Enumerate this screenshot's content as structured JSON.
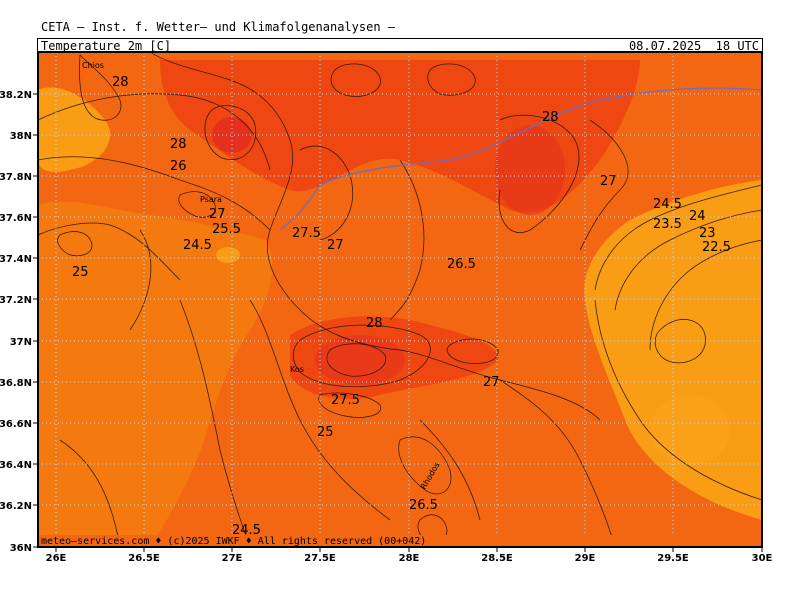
{
  "header": {
    "title": "CETA — Inst. f. Wetter— und Klimafolgenanalysen —",
    "variable": "Temperature_2m_[C]",
    "valid_time": "08.07.2025  18 UTC"
  },
  "footer": {
    "credit": "meteo—services.com ♦ (c)2025 IWKF ♦ All rights reserved (00+042)"
  },
  "axes": {
    "lon_labels": [
      "26E",
      "26.5E",
      "27E",
      "27.5E",
      "28E",
      "28.5E",
      "29E",
      "29.5E",
      "30E"
    ],
    "lat_labels": [
      "36N",
      "36.2N",
      "36.4N",
      "36.6N",
      "36.8N",
      "37N",
      "37.2N",
      "37.4N",
      "37.6N",
      "37.8N",
      "38N",
      "38.2N"
    ]
  },
  "colors": {
    "warm": "#f25d0d",
    "mid": "#f47a10",
    "cool": "#f99d14",
    "hot": "#ee4712",
    "hottest": "#e6301d",
    "border_line": "#6b6cc4"
  },
  "contour_labels": [
    "28",
    "28",
    "26",
    "27",
    "25.5",
    "24.5",
    "25",
    "27.5",
    "27",
    "26.5",
    "28",
    "27",
    "24.5",
    "24",
    "23.5",
    "23",
    "22.5",
    "28",
    "27.5",
    "27",
    "25",
    "26.5",
    "24.5"
  ],
  "place_labels": [
    "Chios",
    "Psara",
    "Kos",
    "Rhodos"
  ]
}
